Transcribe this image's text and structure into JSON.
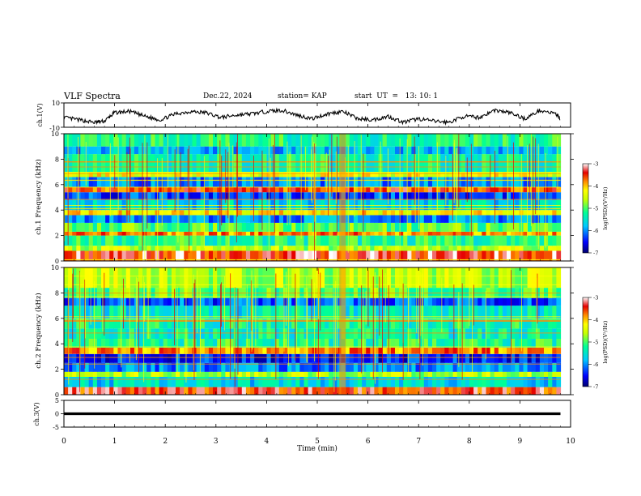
{
  "header": {
    "title": "VLF Spectra",
    "date": "Dec.22, 2024",
    "station": "station= KAP",
    "start": "start  UT  =   13: 10: 1"
  },
  "chart_data": [
    {
      "type": "line",
      "panel": "ch1-waveform",
      "ylabel": "ch.1(V)",
      "ylim": [
        -10,
        10
      ],
      "yticks": [
        "10",
        "-10"
      ],
      "xlim": [
        0,
        10
      ],
      "series": [
        {
          "x": [
            0,
            0.3,
            0.6,
            0.8,
            1.0,
            1.3,
            1.6,
            1.9,
            2.2,
            2.5,
            2.8,
            3.1,
            3.4,
            3.7,
            4.0,
            4.3,
            4.6,
            4.9,
            5.2,
            5.5,
            5.8,
            6.1,
            6.4,
            6.7,
            7.0,
            7.3,
            7.6,
            7.9,
            8.2,
            8.5,
            8.8,
            9.1,
            9.4,
            9.7,
            9.8
          ],
          "values": [
            -2,
            -4,
            -6,
            -5,
            2,
            3,
            -1,
            -4,
            1,
            3,
            2,
            -2,
            0,
            1,
            3,
            4,
            0,
            -3,
            1,
            3,
            -3,
            -4,
            -1,
            -6,
            -3,
            -5,
            -6,
            -1,
            -2,
            4,
            2,
            -3,
            4,
            1,
            -3
          ]
        }
      ]
    },
    {
      "type": "heatmap",
      "panel": "ch1-spectrogram",
      "ylabel": "ch.1 Frequency (kHz)",
      "yticks": [
        "0",
        "2",
        "4",
        "6",
        "8",
        "10"
      ],
      "ylim": [
        0,
        10
      ],
      "xlim": [
        0,
        10
      ],
      "colorbar": {
        "label": "log(PSD)(V²/Hz)",
        "ticks": [
          "-3",
          "-4",
          "-5",
          "-6",
          "-7"
        ],
        "range": [
          -7,
          -3
        ]
      },
      "bands": [
        {
          "f": [
            0,
            0.8
          ],
          "level": -3.4
        },
        {
          "f": [
            0.8,
            1.2
          ],
          "level": -4.6
        },
        {
          "f": [
            1.2,
            2.0
          ],
          "level": -5.2
        },
        {
          "f": [
            2.0,
            2.3
          ],
          "level": -3.8
        },
        {
          "f": [
            2.3,
            3.0
          ],
          "level": -5.0
        },
        {
          "f": [
            3.0,
            3.6
          ],
          "level": -6.0
        },
        {
          "f": [
            3.6,
            4.0
          ],
          "level": -4.2
        },
        {
          "f": [
            4.0,
            4.8
          ],
          "level": -5.6
        },
        {
          "f": [
            4.8,
            5.4
          ],
          "level": -6.3
        },
        {
          "f": [
            5.4,
            5.8
          ],
          "level": -3.6
        },
        {
          "f": [
            5.8,
            6.6
          ],
          "level": -6.0
        },
        {
          "f": [
            6.6,
            7.0
          ],
          "level": -4.3
        },
        {
          "f": [
            7.0,
            8.4
          ],
          "level": -5.3
        },
        {
          "f": [
            8.4,
            9.0
          ],
          "level": -5.8
        },
        {
          "f": [
            9.0,
            10.0
          ],
          "level": -5.2
        }
      ]
    },
    {
      "type": "heatmap",
      "panel": "ch2-spectrogram",
      "ylabel": "ch.2 Frequency (kHz)",
      "yticks": [
        "0",
        "2",
        "4",
        "6",
        "8",
        "10"
      ],
      "ylim": [
        0,
        10
      ],
      "xlim": [
        0,
        10
      ],
      "colorbar": {
        "label": "log(PSD)(V²/Hz)",
        "ticks": [
          "-3",
          "-4",
          "-5",
          "-6",
          "-7"
        ],
        "range": [
          -7,
          -3
        ]
      },
      "bands": [
        {
          "f": [
            0,
            0.6
          ],
          "level": -3.5
        },
        {
          "f": [
            0.6,
            1.4
          ],
          "level": -5.6
        },
        {
          "f": [
            1.4,
            1.8
          ],
          "level": -4.6
        },
        {
          "f": [
            1.8,
            2.5
          ],
          "level": -6.0
        },
        {
          "f": [
            2.5,
            3.2
          ],
          "level": -6.4
        },
        {
          "f": [
            3.2,
            3.7
          ],
          "level": -3.8
        },
        {
          "f": [
            3.7,
            4.4
          ],
          "level": -5.2
        },
        {
          "f": [
            4.4,
            5.2
          ],
          "level": -5.4
        },
        {
          "f": [
            5.2,
            6.0
          ],
          "level": -5.3
        },
        {
          "f": [
            6.0,
            7.0
          ],
          "level": -5.5
        },
        {
          "f": [
            7.0,
            7.6
          ],
          "level": -6.2
        },
        {
          "f": [
            7.6,
            8.4
          ],
          "level": -5.0
        },
        {
          "f": [
            8.4,
            10.0
          ],
          "level": -4.6
        }
      ]
    },
    {
      "type": "line",
      "panel": "ch3-waveform",
      "ylabel": "ch.3(V)",
      "ylim": [
        -5,
        5
      ],
      "yticks": [
        "5",
        "0",
        "-5"
      ],
      "xlim": [
        0,
        10
      ],
      "series": [
        {
          "x": [
            0,
            9.8
          ],
          "values": [
            0,
            0
          ],
          "band": [
            -0.5,
            0.5
          ]
        }
      ]
    }
  ],
  "xaxis": {
    "label": "Time (min)",
    "ticks": [
      "0",
      "1",
      "2",
      "3",
      "4",
      "5",
      "6",
      "7",
      "8",
      "9",
      "10"
    ],
    "range": [
      0,
      10
    ],
    "data_end": 9.8
  },
  "events": {
    "broadband_burst_time": 5.5
  },
  "colors": {
    "colormap": [
      "#00006e",
      "#0000ff",
      "#00c8ff",
      "#00ff96",
      "#c8ff00",
      "#ffff00",
      "#ff8c00",
      "#e60000",
      "#ffffff"
    ]
  }
}
